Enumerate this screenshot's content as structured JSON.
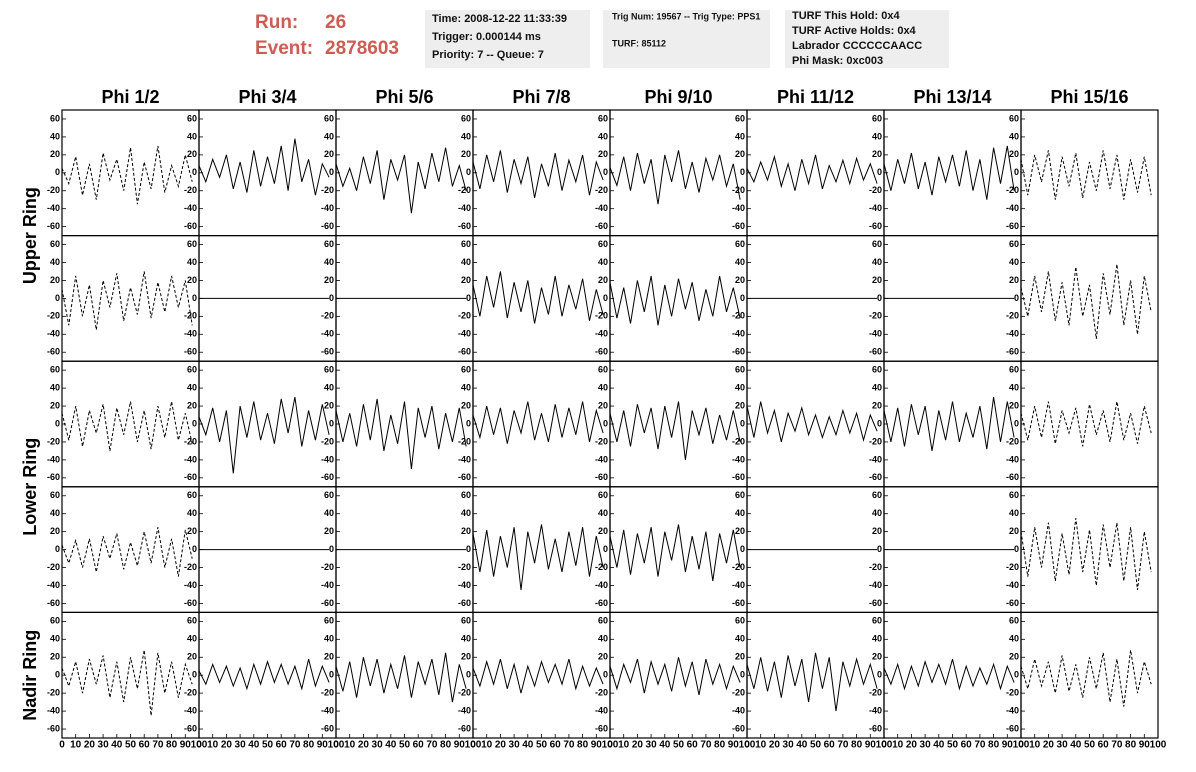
{
  "header": {
    "run_label": "Run:",
    "run": "26",
    "event_label": "Event:",
    "event": "2878603",
    "time": "Time: 2008-12-22 11:33:39",
    "trigger": "Trigger: 0.000144 ms",
    "priority": "Priority: 7 -- Queue: 7",
    "trig_num": "Trig Num: 19567 -- Trig Type: PPS1",
    "turf": "TURF: 85112",
    "turf_hold": "TURF This Hold: 0x4",
    "turf_active": "TURF Active Holds: 0x4",
    "labrador": "Labrador CCCCCCAACC",
    "labrador_color": "#ff00ff",
    "phi_mask": "Phi Mask: 0xc003"
  },
  "chart_data": {
    "type": "line",
    "columns": [
      "Phi 1/2",
      "Phi 3/4",
      "Phi 5/6",
      "Phi 7/8",
      "Phi 9/10",
      "Phi 11/12",
      "Phi 13/14",
      "Phi 15/16"
    ],
    "rows": [
      "Upper Ring",
      "Lower Ring",
      "Nadir Ring"
    ],
    "color": "#000000",
    "x": [
      0,
      5,
      10,
      15,
      20,
      25,
      30,
      35,
      40,
      45,
      50,
      55,
      60,
      65,
      70,
      75,
      80,
      85,
      90,
      95
    ],
    "xlim": [
      0,
      100
    ],
    "ylim": [
      -70,
      70
    ],
    "xticks": [
      0,
      10,
      20,
      30,
      40,
      50,
      60,
      70,
      80,
      90,
      100
    ],
    "yticks": [
      -60,
      -40,
      -20,
      0,
      20,
      40,
      60
    ],
    "panels": [
      [
        {
          "dashed": true,
          "values": [
            5,
            -12,
            18,
            -25,
            10,
            -30,
            22,
            -8,
            15,
            -20,
            28,
            -35,
            12,
            -18,
            30,
            -22,
            8,
            -15,
            20,
            -10
          ]
        },
        {
          "dashed": false,
          "values": [
            8,
            -10,
            15,
            -5,
            20,
            -18,
            12,
            -22,
            25,
            -15,
            18,
            -12,
            30,
            -20,
            38,
            -10,
            15,
            -25,
            10,
            -5
          ]
        },
        {
          "dashed": false,
          "values": [
            10,
            -15,
            5,
            -20,
            18,
            -12,
            25,
            -30,
            15,
            -8,
            20,
            -45,
            12,
            -18,
            22,
            -10,
            28,
            -15,
            8,
            -20
          ]
        },
        {
          "dashed": false,
          "values": [
            12,
            -18,
            20,
            -10,
            25,
            -22,
            15,
            -12,
            18,
            -28,
            10,
            -15,
            22,
            -20,
            14,
            -10,
            20,
            -25,
            12,
            -8
          ]
        },
        {
          "dashed": false,
          "values": [
            6,
            -14,
            18,
            -20,
            22,
            -12,
            15,
            -35,
            20,
            -10,
            25,
            -18,
            12,
            -22,
            16,
            -8,
            20,
            -15,
            10,
            -30
          ]
        },
        {
          "dashed": false,
          "values": [
            5,
            -10,
            12,
            -8,
            18,
            -15,
            10,
            -20,
            15,
            -12,
            20,
            -18,
            8,
            -10,
            14,
            -12,
            16,
            -8,
            10,
            -12
          ]
        },
        {
          "dashed": false,
          "values": [
            10,
            -20,
            15,
            -12,
            22,
            -18,
            12,
            -25,
            18,
            -10,
            20,
            -15,
            25,
            -20,
            15,
            -30,
            28,
            -12,
            30,
            -20
          ]
        },
        {
          "dashed": true,
          "values": [
            15,
            -25,
            20,
            -10,
            25,
            -30,
            18,
            -15,
            22,
            -28,
            12,
            -20,
            25,
            -18,
            20,
            -30,
            15,
            -22,
            18,
            -25
          ]
        }
      ],
      [
        {
          "dashed": true,
          "values": [
            10,
            -30,
            25,
            -20,
            15,
            -35,
            20,
            -10,
            28,
            -25,
            12,
            -18,
            30,
            -22,
            18,
            -15,
            25,
            -10,
            20,
            -30
          ]
        },
        {
          "dashed": false,
          "values": [
            0,
            0,
            0,
            0,
            0,
            0,
            0,
            0,
            0,
            0,
            0,
            0,
            0,
            0,
            0,
            0,
            0,
            0,
            0,
            0
          ]
        },
        {
          "dashed": false,
          "values": [
            0,
            0,
            0,
            0,
            0,
            0,
            0,
            0,
            0,
            0,
            0,
            0,
            0,
            0,
            0,
            0,
            0,
            0,
            0,
            0
          ]
        },
        {
          "dashed": false,
          "values": [
            15,
            -20,
            25,
            -10,
            30,
            -22,
            18,
            -15,
            20,
            -28,
            12,
            -18,
            25,
            -20,
            15,
            -12,
            22,
            -25,
            10,
            -18
          ]
        },
        {
          "dashed": false,
          "values": [
            18,
            -22,
            12,
            -28,
            20,
            -15,
            25,
            -30,
            15,
            -20,
            22,
            -12,
            18,
            -25,
            10,
            -20,
            25,
            -15,
            12,
            -22
          ]
        },
        {
          "dashed": false,
          "values": [
            0,
            0,
            0,
            0,
            0,
            0,
            0,
            0,
            0,
            0,
            0,
            0,
            0,
            0,
            0,
            0,
            0,
            0,
            0,
            0
          ]
        },
        {
          "dashed": false,
          "values": [
            0,
            0,
            0,
            0,
            0,
            0,
            0,
            0,
            0,
            0,
            0,
            0,
            0,
            0,
            0,
            0,
            0,
            0,
            0,
            0
          ]
        },
        {
          "dashed": true,
          "values": [
            12,
            -20,
            25,
            -15,
            30,
            -25,
            18,
            -30,
            35,
            -20,
            15,
            -45,
            28,
            -18,
            38,
            -30,
            20,
            -40,
            25,
            -15
          ]
        }
      ],
      [
        {
          "dashed": true,
          "values": [
            12,
            -18,
            20,
            -25,
            15,
            -10,
            22,
            -30,
            18,
            -12,
            25,
            -20,
            15,
            -28,
            20,
            -15,
            25,
            -18,
            12,
            -22
          ]
        },
        {
          "dashed": false,
          "values": [
            8,
            -12,
            18,
            -20,
            15,
            -55,
            20,
            -15,
            25,
            -18,
            12,
            -22,
            28,
            -10,
            30,
            -25,
            15,
            -18,
            22,
            -12
          ]
        },
        {
          "dashed": false,
          "values": [
            15,
            -20,
            12,
            -25,
            22,
            -18,
            28,
            -30,
            10,
            -22,
            25,
            -50,
            18,
            -15,
            20,
            -28,
            12,
            -20,
            18,
            -25
          ]
        },
        {
          "dashed": false,
          "values": [
            10,
            -15,
            20,
            -12,
            18,
            -22,
            15,
            -10,
            25,
            -18,
            12,
            -20,
            22,
            -15,
            18,
            -12,
            25,
            -20,
            15,
            -10
          ]
        },
        {
          "dashed": false,
          "values": [
            12,
            -20,
            15,
            -25,
            22,
            -10,
            18,
            -28,
            20,
            -15,
            25,
            -40,
            15,
            -12,
            18,
            -22,
            10,
            -18,
            15,
            -20
          ]
        },
        {
          "dashed": false,
          "values": [
            20,
            -15,
            25,
            -10,
            15,
            -20,
            12,
            -8,
            18,
            -12,
            10,
            -15,
            8,
            -12,
            15,
            -10,
            12,
            -18,
            10,
            -8
          ]
        },
        {
          "dashed": false,
          "values": [
            15,
            -20,
            18,
            -25,
            22,
            -12,
            20,
            -30,
            15,
            -18,
            25,
            -20,
            12,
            -15,
            20,
            -28,
            30,
            -20,
            25,
            -15
          ]
        },
        {
          "dashed": true,
          "values": [
            12,
            -18,
            20,
            -15,
            25,
            -22,
            15,
            -10,
            18,
            -25,
            22,
            -12,
            15,
            -20,
            25,
            -18,
            12,
            -22,
            20,
            -10
          ]
        }
      ],
      [
        {
          "dashed": true,
          "values": [
            5,
            -15,
            10,
            -20,
            12,
            -25,
            15,
            -10,
            18,
            -22,
            8,
            -18,
            20,
            -15,
            25,
            -20,
            12,
            -30,
            22,
            -10
          ]
        },
        {
          "dashed": false,
          "values": [
            0,
            0,
            0,
            0,
            0,
            0,
            0,
            0,
            0,
            0,
            0,
            0,
            0,
            0,
            0,
            0,
            0,
            0,
            0,
            0
          ]
        },
        {
          "dashed": false,
          "values": [
            0,
            0,
            0,
            0,
            0,
            0,
            0,
            0,
            0,
            0,
            0,
            0,
            0,
            0,
            0,
            0,
            0,
            0,
            0,
            0
          ]
        },
        {
          "dashed": false,
          "values": [
            18,
            -25,
            22,
            -30,
            15,
            -20,
            25,
            -45,
            20,
            -15,
            28,
            -22,
            12,
            -25,
            20,
            -18,
            25,
            -30,
            15,
            -20
          ]
        },
        {
          "dashed": false,
          "values": [
            15,
            -20,
            22,
            -28,
            18,
            -15,
            25,
            -30,
            20,
            -12,
            28,
            -25,
            15,
            -22,
            20,
            -35,
            18,
            -15,
            22,
            -20
          ]
        },
        {
          "dashed": false,
          "values": [
            0,
            0,
            0,
            0,
            0,
            0,
            0,
            0,
            0,
            0,
            0,
            0,
            0,
            0,
            0,
            0,
            0,
            0,
            0,
            0
          ]
        },
        {
          "dashed": false,
          "values": [
            0,
            0,
            0,
            0,
            0,
            0,
            0,
            0,
            0,
            0,
            0,
            0,
            0,
            0,
            0,
            0,
            0,
            0,
            0,
            0
          ]
        },
        {
          "dashed": true,
          "values": [
            20,
            -30,
            25,
            -20,
            30,
            -35,
            18,
            -28,
            35,
            -25,
            22,
            -40,
            28,
            -20,
            30,
            -35,
            25,
            -45,
            20,
            -25
          ]
        }
      ],
      [
        {
          "dashed": true,
          "values": [
            8,
            -12,
            15,
            -20,
            18,
            -10,
            22,
            -25,
            15,
            -30,
            20,
            -15,
            28,
            -45,
            25,
            -20,
            15,
            -25,
            12,
            -10
          ]
        },
        {
          "dashed": false,
          "values": [
            5,
            -10,
            12,
            -8,
            10,
            -12,
            8,
            -15,
            12,
            -10,
            15,
            -8,
            12,
            -10,
            10,
            -15,
            18,
            -12,
            10,
            -8
          ]
        },
        {
          "dashed": false,
          "values": [
            10,
            -18,
            15,
            -25,
            20,
            -12,
            18,
            -20,
            12,
            -15,
            22,
            -25,
            15,
            -10,
            18,
            -22,
            25,
            -30,
            12,
            -15
          ]
        },
        {
          "dashed": false,
          "values": [
            8,
            -12,
            15,
            -10,
            18,
            -15,
            12,
            -20,
            10,
            -12,
            15,
            -8,
            12,
            -10,
            18,
            -15,
            10,
            -12,
            8,
            -10
          ]
        },
        {
          "dashed": false,
          "values": [
            10,
            -15,
            12,
            -8,
            18,
            -20,
            15,
            -10,
            12,
            -18,
            20,
            -12,
            15,
            -22,
            18,
            -10,
            12,
            -15,
            10,
            -8
          ]
        },
        {
          "dashed": false,
          "values": [
            12,
            -15,
            20,
            -18,
            15,
            -25,
            22,
            -12,
            18,
            -30,
            25,
            -15,
            20,
            -40,
            15,
            -12,
            18,
            -10,
            12,
            -15
          ]
        },
        {
          "dashed": false,
          "values": [
            8,
            -10,
            12,
            -15,
            10,
            -12,
            15,
            -8,
            12,
            -10,
            18,
            -15,
            10,
            -12,
            8,
            -10,
            12,
            -15,
            10,
            -8
          ]
        },
        {
          "dashed": true,
          "values": [
            10,
            -15,
            18,
            -12,
            15,
            -20,
            22,
            -18,
            12,
            -25,
            20,
            -15,
            25,
            -30,
            18,
            -35,
            28,
            -20,
            15,
            -10
          ]
        }
      ]
    ]
  }
}
